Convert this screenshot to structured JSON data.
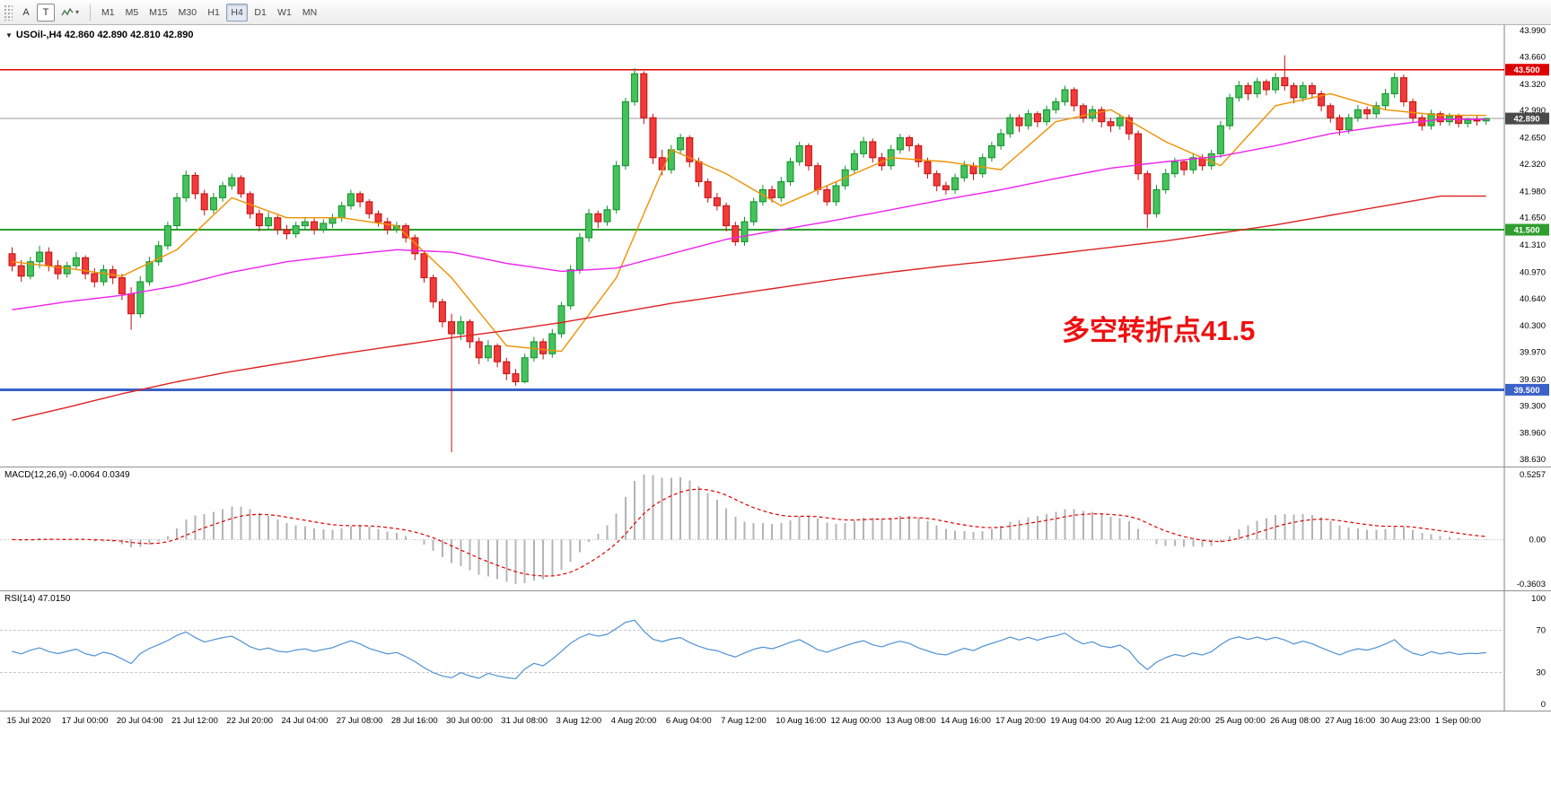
{
  "toolbar": {
    "buttons": [
      {
        "label": "A"
      },
      {
        "label": "T"
      }
    ],
    "timeframes": [
      "M1",
      "M5",
      "M15",
      "M30",
      "H1",
      "H4",
      "D1",
      "W1",
      "MN"
    ],
    "active_timeframe": "H4"
  },
  "chart_data": {
    "type": "candlestick",
    "symbol": "USOil",
    "timeframe": "H4",
    "title": "USOil-,H4 42.860 42.890 42.810 42.890",
    "ohlc_quote": {
      "open": "42.860",
      "high": "42.890",
      "low": "42.810",
      "close": "42.890"
    },
    "price_range": {
      "min": 38.63,
      "max": 43.99
    },
    "price_axis_ticks": [
      "43.990",
      "43.660",
      "43.320",
      "42.990",
      "42.650",
      "42.320",
      "41.980",
      "41.650",
      "41.310",
      "40.970",
      "40.640",
      "40.300",
      "39.970",
      "39.630",
      "39.300",
      "38.960",
      "38.630"
    ],
    "time_ticks": [
      "15 Jul 2020",
      "17 Jul 00:00",
      "20 Jul 04:00",
      "21 Jul 12:00",
      "22 Jul 20:00",
      "24 Jul 04:00",
      "27 Jul 08:00",
      "28 Jul 16:00",
      "30 Jul 00:00",
      "31 Jul 08:00",
      "3 Aug 12:00",
      "4 Aug 20:00",
      "6 Aug 04:00",
      "7 Aug 12:00",
      "10 Aug 16:00",
      "12 Aug 00:00",
      "13 Aug 08:00",
      "14 Aug 16:00",
      "17 Aug 20:00",
      "19 Aug 04:00",
      "20 Aug 12:00",
      "21 Aug 20:00",
      "25 Aug 00:00",
      "26 Aug 08:00",
      "27 Aug 16:00",
      "30 Aug 23:00",
      "1 Sep 00:00"
    ],
    "candles_per_tick": 6,
    "candles": [
      [
        41.2,
        41.28,
        40.98,
        41.05
      ],
      [
        41.05,
        41.12,
        40.85,
        40.92
      ],
      [
        40.92,
        41.16,
        40.88,
        41.1
      ],
      [
        41.1,
        41.3,
        41.02,
        41.22
      ],
      [
        41.22,
        41.28,
        40.98,
        41.05
      ],
      [
        41.05,
        41.12,
        40.88,
        40.95
      ],
      [
        40.95,
        41.1,
        40.9,
        41.05
      ],
      [
        41.05,
        41.22,
        41.0,
        41.15
      ],
      [
        41.15,
        41.18,
        40.88,
        40.95
      ],
      [
        40.95,
        41.02,
        40.78,
        40.85
      ],
      [
        40.85,
        41.06,
        40.8,
        41.0
      ],
      [
        41.0,
        41.05,
        40.82,
        40.9
      ],
      [
        40.9,
        40.95,
        40.62,
        40.7
      ],
      [
        40.7,
        40.78,
        40.25,
        40.45
      ],
      [
        40.45,
        40.92,
        40.4,
        40.85
      ],
      [
        40.85,
        41.16,
        40.8,
        41.1
      ],
      [
        41.1,
        41.36,
        41.05,
        41.3
      ],
      [
        41.3,
        41.6,
        41.25,
        41.55
      ],
      [
        41.55,
        41.96,
        41.5,
        41.9
      ],
      [
        41.9,
        42.24,
        41.85,
        42.18
      ],
      [
        42.18,
        42.22,
        41.88,
        41.95
      ],
      [
        41.95,
        42.0,
        41.68,
        41.75
      ],
      [
        41.75,
        41.96,
        41.7,
        41.9
      ],
      [
        41.9,
        42.1,
        41.85,
        42.05
      ],
      [
        42.05,
        42.2,
        42.0,
        42.15
      ],
      [
        42.15,
        42.18,
        41.9,
        41.95
      ],
      [
        41.95,
        41.98,
        41.64,
        41.7
      ],
      [
        41.7,
        41.75,
        41.48,
        41.55
      ],
      [
        41.55,
        41.72,
        41.5,
        41.65
      ],
      [
        41.65,
        41.68,
        41.44,
        41.5
      ],
      [
        41.5,
        41.56,
        41.38,
        41.45
      ],
      [
        41.45,
        41.6,
        41.4,
        41.55
      ],
      [
        41.55,
        41.66,
        41.5,
        41.6
      ],
      [
        41.6,
        41.64,
        41.44,
        41.5
      ],
      [
        41.5,
        41.63,
        41.46,
        41.58
      ],
      [
        41.58,
        41.7,
        41.52,
        41.65
      ],
      [
        41.65,
        41.85,
        41.6,
        41.8
      ],
      [
        41.8,
        42.0,
        41.75,
        41.95
      ],
      [
        41.95,
        41.98,
        41.78,
        41.85
      ],
      [
        41.85,
        41.88,
        41.64,
        41.7
      ],
      [
        41.7,
        41.74,
        41.54,
        41.6
      ],
      [
        41.6,
        41.65,
        41.44,
        41.5
      ],
      [
        41.5,
        41.6,
        41.46,
        41.55
      ],
      [
        41.55,
        41.58,
        41.34,
        41.4
      ],
      [
        41.4,
        41.44,
        41.12,
        41.2
      ],
      [
        41.2,
        41.24,
        40.84,
        40.9
      ],
      [
        40.9,
        40.94,
        40.52,
        40.6
      ],
      [
        40.6,
        40.64,
        40.28,
        40.35
      ],
      [
        40.35,
        40.45,
        38.72,
        40.2
      ],
      [
        40.2,
        40.42,
        40.12,
        40.35
      ],
      [
        40.35,
        40.38,
        40.02,
        40.1
      ],
      [
        40.1,
        40.15,
        39.82,
        39.9
      ],
      [
        39.9,
        40.12,
        39.85,
        40.05
      ],
      [
        40.05,
        40.08,
        39.78,
        39.85
      ],
      [
        39.85,
        39.9,
        39.62,
        39.7
      ],
      [
        39.7,
        39.76,
        39.55,
        39.6
      ],
      [
        39.6,
        39.95,
        39.58,
        39.9
      ],
      [
        39.9,
        40.16,
        39.85,
        40.1
      ],
      [
        40.1,
        40.14,
        39.88,
        39.95
      ],
      [
        39.95,
        40.26,
        39.9,
        40.2
      ],
      [
        40.2,
        40.6,
        40.15,
        40.55
      ],
      [
        40.55,
        41.06,
        40.5,
        41.0
      ],
      [
        41.0,
        41.46,
        40.95,
        41.4
      ],
      [
        41.4,
        41.76,
        41.35,
        41.7
      ],
      [
        41.7,
        41.74,
        41.52,
        41.6
      ],
      [
        41.6,
        41.8,
        41.55,
        41.75
      ],
      [
        41.75,
        42.36,
        41.7,
        42.3
      ],
      [
        42.3,
        43.15,
        42.25,
        43.1
      ],
      [
        43.1,
        43.52,
        43.05,
        43.45
      ],
      [
        43.45,
        43.48,
        42.82,
        42.9
      ],
      [
        42.9,
        42.95,
        42.32,
        42.4
      ],
      [
        42.4,
        42.5,
        42.18,
        42.25
      ],
      [
        42.25,
        42.56,
        42.2,
        42.5
      ],
      [
        42.5,
        42.7,
        42.45,
        42.65
      ],
      [
        42.65,
        42.68,
        42.28,
        42.35
      ],
      [
        42.35,
        42.4,
        42.04,
        42.1
      ],
      [
        42.1,
        42.14,
        41.84,
        41.9
      ],
      [
        41.9,
        41.96,
        41.74,
        41.8
      ],
      [
        41.8,
        41.84,
        41.48,
        41.55
      ],
      [
        41.55,
        41.6,
        41.3,
        41.35
      ],
      [
        41.35,
        41.66,
        41.3,
        41.6
      ],
      [
        41.6,
        41.9,
        41.55,
        41.85
      ],
      [
        41.85,
        42.06,
        41.8,
        42.0
      ],
      [
        42.0,
        42.05,
        41.84,
        41.9
      ],
      [
        41.9,
        42.16,
        41.85,
        42.1
      ],
      [
        42.1,
        42.4,
        42.05,
        42.35
      ],
      [
        42.35,
        42.6,
        42.3,
        42.55
      ],
      [
        42.55,
        42.58,
        42.24,
        42.3
      ],
      [
        42.3,
        42.34,
        41.94,
        42.0
      ],
      [
        42.0,
        42.05,
        41.8,
        41.85
      ],
      [
        41.85,
        42.1,
        41.8,
        42.05
      ],
      [
        42.05,
        42.3,
        42.0,
        42.25
      ],
      [
        42.25,
        42.5,
        42.2,
        42.45
      ],
      [
        42.45,
        42.66,
        42.4,
        42.6
      ],
      [
        42.6,
        42.64,
        42.34,
        42.4
      ],
      [
        42.4,
        42.46,
        42.24,
        42.3
      ],
      [
        42.3,
        42.56,
        42.25,
        42.5
      ],
      [
        42.5,
        42.7,
        42.45,
        42.65
      ],
      [
        42.65,
        42.68,
        42.48,
        42.55
      ],
      [
        42.55,
        42.58,
        42.28,
        42.35
      ],
      [
        42.35,
        42.4,
        42.14,
        42.2
      ],
      [
        42.2,
        42.24,
        41.98,
        42.05
      ],
      [
        42.05,
        42.1,
        41.94,
        42.0
      ],
      [
        42.0,
        42.2,
        41.95,
        42.15
      ],
      [
        42.15,
        42.36,
        42.1,
        42.3
      ],
      [
        42.3,
        42.34,
        42.12,
        42.2
      ],
      [
        42.2,
        42.45,
        42.15,
        42.4
      ],
      [
        42.4,
        42.6,
        42.35,
        42.55
      ],
      [
        42.55,
        42.76,
        42.5,
        42.7
      ],
      [
        42.7,
        42.95,
        42.65,
        42.9
      ],
      [
        42.9,
        42.94,
        42.72,
        42.8
      ],
      [
        42.8,
        43.0,
        42.75,
        42.95
      ],
      [
        42.95,
        42.98,
        42.78,
        42.85
      ],
      [
        42.85,
        43.05,
        42.8,
        43.0
      ],
      [
        43.0,
        43.15,
        42.95,
        43.1
      ],
      [
        43.1,
        43.3,
        43.05,
        43.25
      ],
      [
        43.25,
        43.28,
        42.98,
        43.05
      ],
      [
        43.05,
        43.08,
        42.84,
        42.9
      ],
      [
        42.9,
        43.05,
        42.85,
        43.0
      ],
      [
        43.0,
        43.04,
        42.78,
        42.85
      ],
      [
        42.85,
        42.9,
        42.72,
        42.8
      ],
      [
        42.8,
        42.95,
        42.75,
        42.9
      ],
      [
        42.9,
        42.94,
        42.62,
        42.7
      ],
      [
        42.7,
        42.74,
        42.12,
        42.2
      ],
      [
        42.2,
        42.24,
        41.52,
        41.7
      ],
      [
        41.7,
        42.06,
        41.65,
        42.0
      ],
      [
        42.0,
        42.26,
        41.95,
        42.2
      ],
      [
        42.2,
        42.4,
        42.15,
        42.35
      ],
      [
        42.35,
        42.38,
        42.18,
        42.25
      ],
      [
        42.25,
        42.46,
        42.2,
        42.4
      ],
      [
        42.4,
        42.44,
        42.24,
        42.3
      ],
      [
        42.3,
        42.5,
        42.25,
        42.45
      ],
      [
        42.45,
        42.86,
        42.4,
        42.8
      ],
      [
        42.8,
        43.2,
        42.75,
        43.15
      ],
      [
        43.15,
        43.36,
        43.1,
        43.3
      ],
      [
        43.3,
        43.34,
        43.12,
        43.2
      ],
      [
        43.2,
        43.4,
        43.15,
        43.35
      ],
      [
        43.35,
        43.38,
        43.18,
        43.25
      ],
      [
        43.25,
        43.46,
        43.2,
        43.4
      ],
      [
        43.4,
        43.68,
        43.24,
        43.3
      ],
      [
        43.3,
        43.34,
        43.08,
        43.15
      ],
      [
        43.15,
        43.35,
        43.1,
        43.3
      ],
      [
        43.3,
        43.34,
        43.14,
        43.2
      ],
      [
        43.2,
        43.24,
        42.98,
        43.05
      ],
      [
        43.05,
        43.08,
        42.84,
        42.9
      ],
      [
        42.9,
        42.94,
        42.68,
        42.75
      ],
      [
        42.75,
        42.95,
        42.7,
        42.9
      ],
      [
        42.9,
        43.06,
        42.85,
        43.0
      ],
      [
        43.0,
        43.04,
        42.88,
        42.95
      ],
      [
        42.95,
        43.1,
        42.9,
        43.05
      ],
      [
        43.05,
        43.26,
        43.0,
        43.2
      ],
      [
        43.2,
        43.46,
        43.15,
        43.4
      ],
      [
        43.4,
        43.44,
        43.04,
        43.1
      ],
      [
        43.1,
        43.14,
        42.84,
        42.9
      ],
      [
        42.9,
        42.94,
        42.74,
        42.8
      ],
      [
        42.8,
        43.0,
        42.75,
        42.95
      ],
      [
        42.95,
        42.98,
        42.8,
        42.85
      ],
      [
        42.85,
        42.96,
        42.8,
        42.92
      ],
      [
        42.92,
        42.95,
        42.78,
        42.83
      ],
      [
        42.83,
        42.9,
        42.78,
        42.87
      ],
      [
        42.87,
        42.92,
        42.8,
        42.86
      ],
      [
        42.86,
        42.9,
        42.81,
        42.89
      ]
    ],
    "moving_averages": [
      {
        "name": "fast-ma",
        "color": "#f09000",
        "anchors": [
          41.1,
          41.02,
          40.92,
          41.25,
          41.9,
          41.65,
          41.65,
          41.55,
          40.9,
          40.05,
          39.98,
          40.9,
          42.5,
          42.2,
          41.8,
          42.1,
          42.4,
          42.35,
          42.25,
          42.85,
          43.0,
          42.6,
          42.3,
          43.05,
          43.2,
          43.0,
          42.93
        ]
      },
      {
        "name": "mid-ma",
        "color": "#ee22ee",
        "anchors": [
          40.5,
          40.6,
          40.68,
          40.8,
          40.97,
          41.1,
          41.18,
          41.25,
          41.22,
          41.08,
          40.98,
          41.02,
          41.2,
          41.38,
          41.5,
          41.62,
          41.75,
          41.88,
          42.0,
          42.14,
          42.27,
          42.35,
          42.42,
          42.55,
          42.7,
          42.8,
          42.88
        ]
      },
      {
        "name": "slow-ma",
        "color": "#dd2222",
        "anchors": [
          39.12,
          39.28,
          39.45,
          39.6,
          39.73,
          39.84,
          39.95,
          40.05,
          40.15,
          40.24,
          40.34,
          40.46,
          40.58,
          40.68,
          40.78,
          40.88,
          40.97,
          41.05,
          41.12,
          41.2,
          41.28,
          41.36,
          41.46,
          41.56,
          41.68,
          41.8,
          41.92
        ]
      }
    ],
    "hlines": [
      {
        "price": 43.5,
        "label": "43.500",
        "color": "#dd0000",
        "width": 1.6
      },
      {
        "price": 41.5,
        "label": "41.500",
        "color": "#2e9e2e",
        "width": 2
      },
      {
        "price": 39.5,
        "label": "39.500",
        "color": "#3a62c8",
        "width": 3
      }
    ],
    "current_price": {
      "value": 42.89,
      "label": "42.890",
      "color": "#4a4a4a"
    },
    "annotation": {
      "text": "多空转折点41.5",
      "color": "#ee1111"
    },
    "candle_colors": {
      "up_fill": "#45c25c",
      "up_stroke": "#0f9128",
      "down_fill": "#f23a3a",
      "down_stroke": "#c40f0f"
    },
    "indicators": {
      "macd": {
        "label": "MACD(12,26,9) -0.0064 0.0349",
        "fast": 12,
        "slow": 26,
        "signal": 9,
        "axis_ticks": [
          "0.5257",
          "0.00",
          "-0.3603"
        ],
        "max": 0.5257,
        "min": -0.3603,
        "histogram_color": "#b4b4b4",
        "signal_color": "#e00000"
      },
      "rsi": {
        "label": "RSI(14) 47.0150",
        "period": 14,
        "value": 47.015,
        "axis_ticks": [
          "100",
          "70",
          "30",
          "0"
        ],
        "levels": [
          70,
          30
        ],
        "line_color": "#4f92d2"
      }
    }
  }
}
